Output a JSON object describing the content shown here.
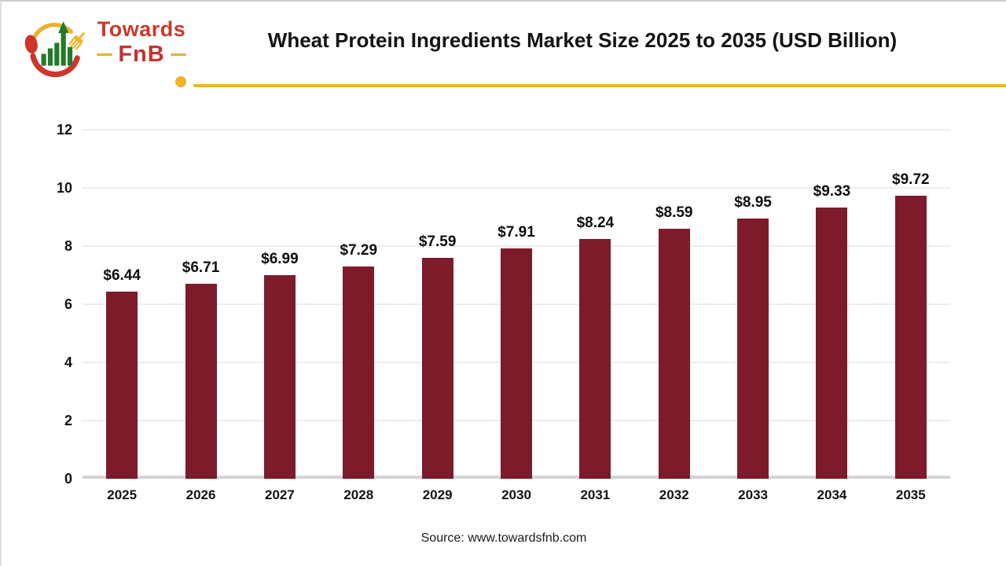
{
  "header": {
    "title": "Wheat Protein Ingredients Market Size 2025 to 2035 (USD Billion)",
    "logo": {
      "brand_top": "Towards",
      "brand_bottom": "FnB"
    }
  },
  "footer": {
    "source": "Source: www.towardsfnb.com"
  },
  "colors": {
    "bar": "#7d1b2b",
    "accent_gold": "#efb32c",
    "logo_red": "#cc382c",
    "logo_green": "#237a28",
    "gridline": "#ededed",
    "axis_baseline": "#d4d4d4",
    "title_text": "#131313"
  },
  "chart_data": {
    "type": "bar",
    "title": "Wheat Protein Ingredients Market Size 2025 to 2035 (USD Billion)",
    "categories": [
      "2025",
      "2026",
      "2027",
      "2028",
      "2029",
      "2030",
      "2031",
      "2032",
      "2033",
      "2034",
      "2035"
    ],
    "values": [
      6.44,
      6.71,
      6.99,
      7.29,
      7.59,
      7.91,
      8.24,
      8.59,
      8.95,
      9.33,
      9.72
    ],
    "labels": [
      "$6.44",
      "$6.71",
      "$6.99",
      "$7.29",
      "$7.59",
      "$7.91",
      "$8.24",
      "$8.59",
      "$8.95",
      "$9.33",
      "$9.72"
    ],
    "xlabel": "",
    "ylabel": "",
    "ylim": [
      0,
      12
    ],
    "yticks": [
      0,
      2,
      4,
      6,
      8,
      10,
      12
    ],
    "grid": "horizontal",
    "legend": "none",
    "bar_color": "#7d1b2b"
  }
}
